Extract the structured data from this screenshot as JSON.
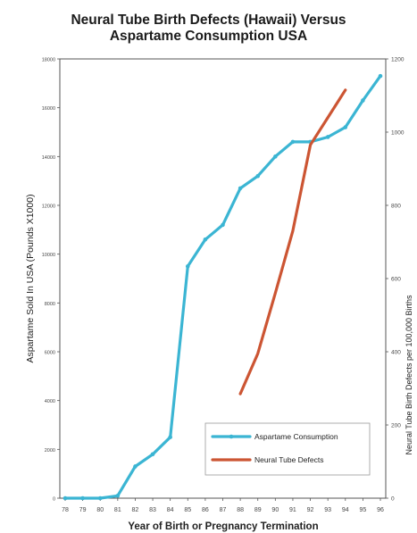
{
  "title_line1": "Neural Tube Birth Defects (Hawaii) Versus",
  "title_line2": "Aspartame Consumption USA",
  "chart_data": {
    "type": "line",
    "title": "Neural Tube Birth Defects (Hawaii) Versus Aspartame Consumption USA",
    "xlabel": "Year of Birth or Pregnancy Termination",
    "ylabel_left": "Aspartame Sold In USA  (Pounds X1000)",
    "ylabel_right": "Neural Tube Birth Defects per 100,000 Births",
    "categories": [
      "78",
      "79",
      "80",
      "81",
      "82",
      "83",
      "84",
      "85",
      "86",
      "87",
      "88",
      "89",
      "90",
      "91",
      "92",
      "93",
      "94",
      "95",
      "96"
    ],
    "left_ticks": [
      0,
      2000,
      4000,
      6000,
      8000,
      10000,
      12000,
      14000,
      16000,
      18000
    ],
    "right_ticks": [
      0,
      200,
      400,
      600,
      800,
      1000,
      1200
    ],
    "ylim_left": [
      0,
      18000
    ],
    "ylim_right": [
      0,
      1200
    ],
    "grid": false,
    "legend_position": "bottom-right",
    "series": [
      {
        "name": "Aspartame Consumption",
        "axis": "left",
        "color": "#3bb5d3",
        "x": [
          "78",
          "79",
          "80",
          "81",
          "82",
          "83",
          "84",
          "85",
          "86",
          "87",
          "88",
          "89",
          "90",
          "91",
          "92",
          "93",
          "94",
          "95",
          "96"
        ],
        "values": [
          0,
          0,
          0,
          100,
          1300,
          1800,
          2500,
          9500,
          10600,
          11200,
          12700,
          13200,
          14000,
          14600,
          14600,
          14800,
          15200,
          16300,
          17300
        ]
      },
      {
        "name": "Neural Tube Defects",
        "axis": "right",
        "color": "#cc5533",
        "x": [
          "88",
          "89",
          "90",
          "91",
          "92",
          "93",
          "94"
        ],
        "values": [
          285,
          395,
          560,
          730,
          965,
          1040,
          1115
        ]
      }
    ]
  }
}
